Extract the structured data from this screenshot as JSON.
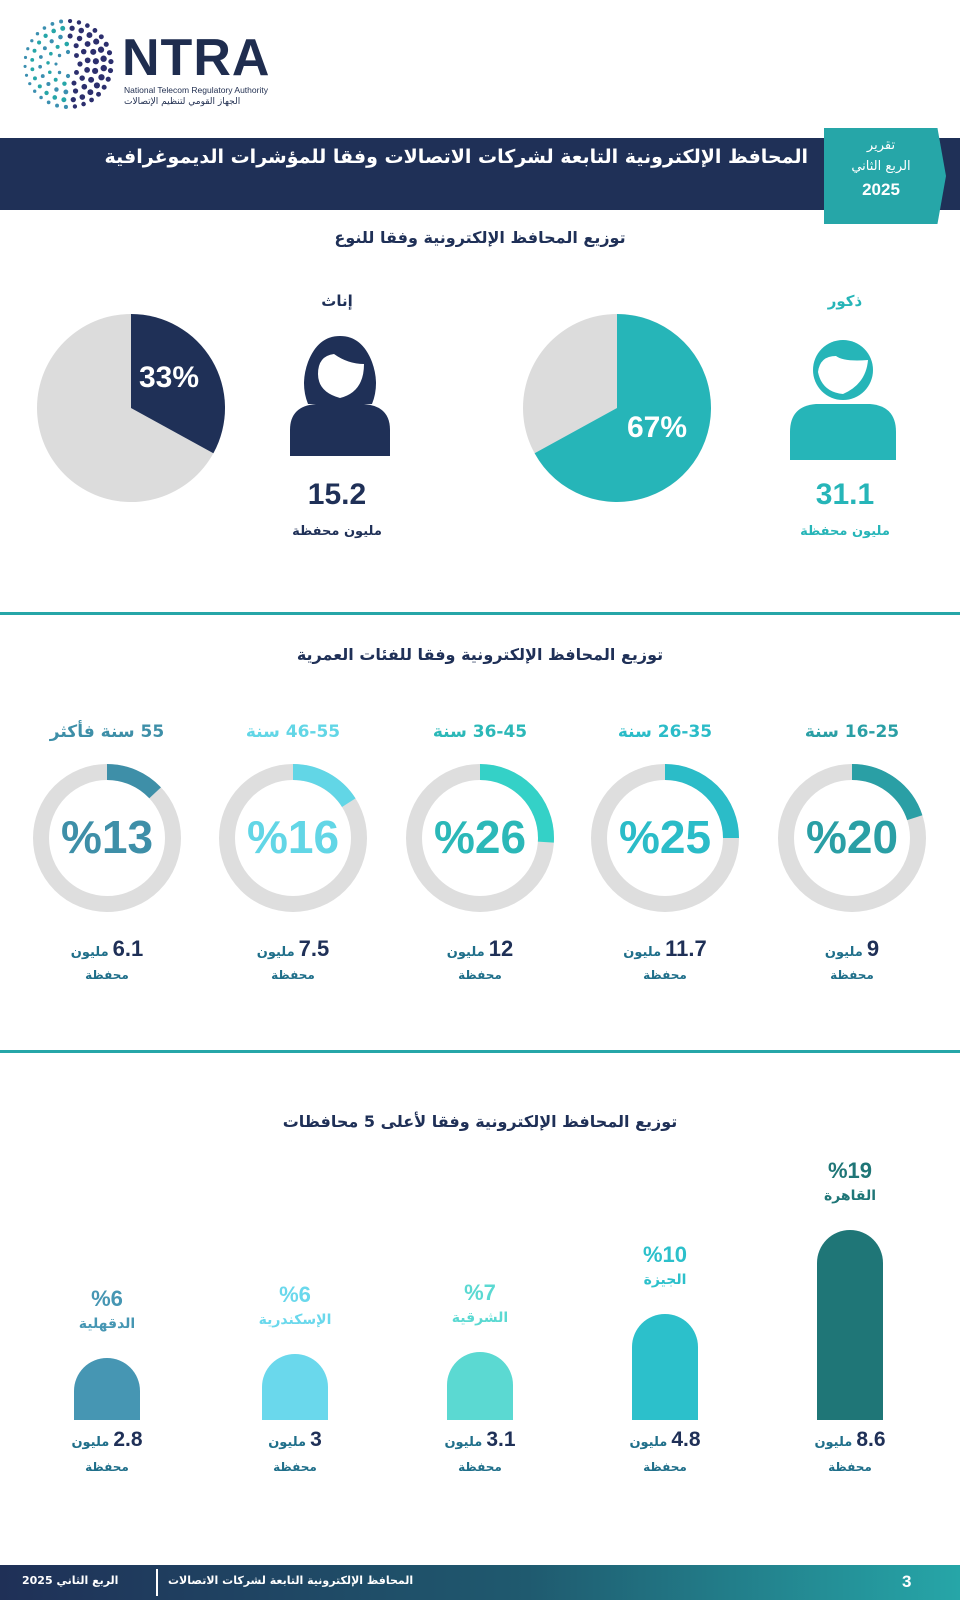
{
  "logo": {
    "wordmark": "NTRA",
    "english_name": "National Telecom Regulatory Authority",
    "arabic_name": "الجهاز القومي لتنظيم الإتصالات"
  },
  "header": {
    "title": "المحافظ الإلكترونية التابعة لشركات الاتصالات وفقا للمؤشرات الديموغرافية",
    "report_tag": {
      "line1": "تقرير",
      "line2": "الربع الثاني",
      "year": "2025"
    }
  },
  "colors": {
    "navy": "#1f3057",
    "teal": "#26b5b8",
    "grey": "#dcdcdc"
  },
  "chart_data": [
    {
      "type": "pie",
      "title": "توزيع المحافظ الإلكترونية وفقا للنوع",
      "slices": [
        {
          "label": "ذكور",
          "percent": 67,
          "value_label": "%67",
          "display": "67%",
          "millions": "31.1",
          "unit": "مليون محفظة",
          "color": "#26b5b8",
          "icon": "male-user-icon"
        },
        {
          "label": "إناث",
          "percent": 33,
          "value_label": "%33",
          "display": "33%",
          "millions": "15.2",
          "unit": "مليون محفظة",
          "color": "#1f3057",
          "icon": "female-user-icon"
        }
      ]
    },
    {
      "type": "donut",
      "title": "توزيع المحافظ الإلكترونية وفقا للفئات العمرية",
      "categories": [
        {
          "label": "16-25 سنة",
          "percent": 20,
          "display": "%20",
          "millions": "9",
          "unit_1": "مليون",
          "unit_2": "محفظة",
          "color": "#2a9fa5"
        },
        {
          "label": "26-35 سنة",
          "percent": 25,
          "display": "%25",
          "millions": "11.7",
          "unit_1": "مليون",
          "unit_2": "محفظة",
          "color": "#2bbcc8"
        },
        {
          "label": "36-45 سنة",
          "percent": 26,
          "display": "%26",
          "millions": "12",
          "unit_1": "مليون",
          "unit_2": "محفظة",
          "color": "#34d1c7"
        },
        {
          "label": "46-55 سنة",
          "percent": 16,
          "display": "%16",
          "millions": "7.5",
          "unit_1": "مليون",
          "unit_2": "محفظة",
          "color": "#62d6e6"
        },
        {
          "label": "55 سنة فأكثر",
          "percent": 13,
          "display": "%13",
          "millions": "6.1",
          "unit_1": "مليون",
          "unit_2": "محفظة",
          "color": "#3e8fa8"
        }
      ]
    },
    {
      "type": "bar",
      "title": "توزيع المحافظ الإلكترونية وفقا لأعلى 5 محافظات",
      "categories": [
        "القاهرة",
        "الجيزة",
        "الشرقية",
        "الإسكندرية",
        "الدقهلية"
      ],
      "values": [
        8.6,
        4.8,
        3.1,
        3,
        2.8
      ],
      "percent_labels": [
        "%19",
        "%10",
        "%7",
        "%6",
        "%6"
      ],
      "value_labels": [
        "8.6",
        "4.8",
        "3.1",
        "3",
        "2.8"
      ],
      "unit_1": "مليون",
      "unit_2": "محفظة",
      "colors": [
        "#1f7677",
        "#2cc0cb",
        "#5bd9d2",
        "#6ad8ec",
        "#4696b3"
      ]
    }
  ],
  "footer": {
    "page": "3",
    "title": "المحافظ الإلكترونية التابعة لشركات الاتصالات",
    "period": "الربع الثاني 2025"
  }
}
